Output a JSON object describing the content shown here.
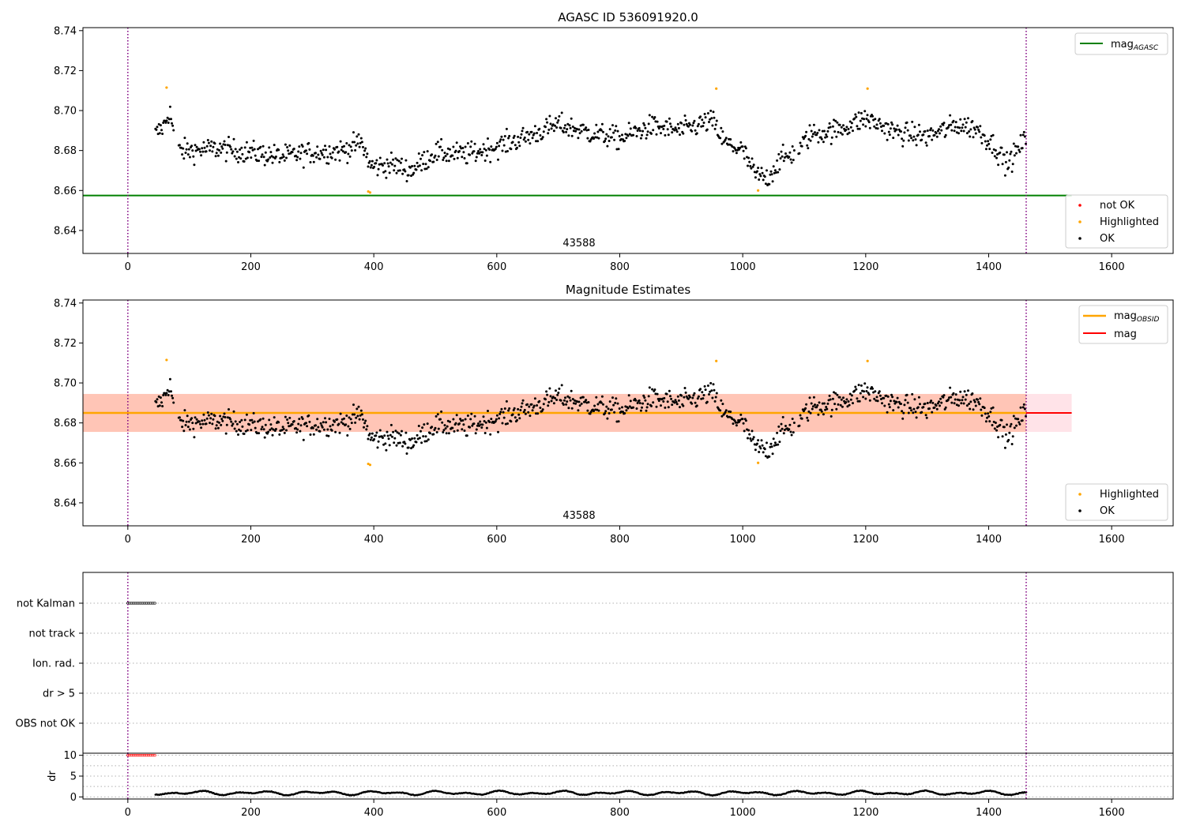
{
  "figure": {
    "colors": {
      "ok": "#000000",
      "not_ok": "#ff0000",
      "highlighted": "#ffa500",
      "mag_agasc": "#008000",
      "mag": "#ff0000",
      "mag_obsid": "#ffa500",
      "band_pink": "#ffc0cb",
      "band_orange": "#ffa07a",
      "epoch_line": "#800080",
      "grid": "#b0b0b0"
    }
  },
  "chart_data": [
    {
      "type": "scatter",
      "title": "AGASC ID 536091920.0",
      "xlabel": "",
      "ylabel": "",
      "xlim": [
        -73,
        1700
      ],
      "ylim": [
        8.6285,
        8.7415
      ],
      "xticks": [
        0,
        200,
        400,
        600,
        800,
        1000,
        1200,
        1400,
        1600
      ],
      "yticks": [
        8.64,
        8.66,
        8.68,
        8.7,
        8.72,
        8.74
      ],
      "grid": false,
      "vlines": [
        0,
        1461
      ],
      "annotation": {
        "text": "43588",
        "x": 730,
        "y": 8.633
      },
      "hlines": [
        {
          "name": "mag_AGASC",
          "y": 8.6575,
          "x_range": [
            -73,
            1535
          ]
        }
      ],
      "legends": [
        {
          "placement": "top-right",
          "entries": [
            {
              "label": "mag",
              "subscript": "AGASC",
              "style": "line",
              "color_key": "mag_agasc"
            }
          ]
        },
        {
          "placement": "lower-right",
          "entries": [
            {
              "label": "not OK",
              "style": "dot",
              "color_key": "not_ok"
            },
            {
              "label": "Highlighted",
              "style": "dot",
              "color_key": "highlighted"
            },
            {
              "label": "OK",
              "style": "dot",
              "color_key": "ok"
            }
          ]
        }
      ],
      "series": [
        {
          "name": "OK",
          "points": "mag_series"
        },
        {
          "name": "Highlighted",
          "x": [
            63,
            391,
            394,
            957,
            1025,
            1203
          ],
          "y": [
            8.7115,
            8.6595,
            8.659,
            8.711,
            8.66,
            8.711
          ]
        }
      ]
    },
    {
      "type": "scatter",
      "title": "Magnitude Estimates",
      "xlabel": "",
      "ylabel": "",
      "xlim": [
        -73,
        1700
      ],
      "ylim": [
        8.6285,
        8.7415
      ],
      "xticks": [
        0,
        200,
        400,
        600,
        800,
        1000,
        1200,
        1400,
        1600
      ],
      "yticks": [
        8.64,
        8.66,
        8.68,
        8.7,
        8.72,
        8.74
      ],
      "grid": false,
      "vlines": [
        0,
        1461
      ],
      "annotation": {
        "text": "43588",
        "x": 730,
        "y": 8.633
      },
      "bands": [
        {
          "name": "mag_band",
          "y": [
            8.6755,
            8.6945
          ],
          "x_range": [
            -73,
            1535
          ],
          "color_key": "band_pink"
        },
        {
          "name": "mag_OBSID_band",
          "y": [
            8.6755,
            8.6945
          ],
          "x_range": [
            -73,
            1461
          ],
          "color_key": "band_orange"
        }
      ],
      "hlines": [
        {
          "name": "mag",
          "y": 8.685,
          "x_range": [
            -73,
            1535
          ],
          "color_key": "mag"
        },
        {
          "name": "mag_OBSID",
          "y": 8.685,
          "x_range": [
            -73,
            1461
          ],
          "color_key": "mag_obsid"
        }
      ],
      "legends": [
        {
          "placement": "top-right",
          "entries": [
            {
              "label": "mag",
              "subscript": "OBSID",
              "style": "line",
              "color_key": "mag_obsid"
            },
            {
              "label": "mag",
              "subscript": "",
              "style": "line",
              "color_key": "mag"
            }
          ]
        },
        {
          "placement": "lower-right",
          "entries": [
            {
              "label": "Highlighted",
              "style": "dot",
              "color_key": "highlighted"
            },
            {
              "label": "OK",
              "style": "dot",
              "color_key": "ok"
            }
          ]
        }
      ],
      "series": [
        {
          "name": "OK",
          "points": "mag_series"
        },
        {
          "name": "Highlighted",
          "x": [
            63,
            391,
            394,
            957,
            1025,
            1203
          ],
          "y": [
            8.7115,
            8.6595,
            8.659,
            8.711,
            8.66,
            8.711
          ]
        }
      ]
    },
    {
      "type": "scatter",
      "title": "",
      "xlim": [
        -73,
        1700
      ],
      "categories": [
        "not Kalman",
        "not track",
        "Ion. rad.",
        "dr > 5",
        "OBS not OK"
      ],
      "grid": "horizontal dotted",
      "vlines": [
        0,
        1461
      ],
      "series": [
        {
          "name": "not Kalman",
          "x_range": [
            0,
            45
          ]
        }
      ]
    },
    {
      "type": "line",
      "title": "",
      "xlabel": "",
      "ylabel": "dr",
      "xlim": [
        -73,
        1700
      ],
      "ylim": [
        -0.5,
        10.5
      ],
      "xticks": [
        0,
        200,
        400,
        600,
        800,
        1000,
        1200,
        1400,
        1600
      ],
      "xtick_labels": [
        "0",
        "200",
        "400",
        "600",
        "800",
        "1000",
        "1200",
        "1400",
        "1600"
      ],
      "yticks": [
        0,
        5,
        10
      ],
      "ytick_labels": [
        "0",
        "5",
        "10"
      ],
      "grid": "horizontal dotted",
      "vlines": [
        0,
        1461
      ],
      "series": [
        {
          "name": "dr capped",
          "x_range": [
            0,
            45
          ],
          "y": 10,
          "color_key": "not_ok"
        },
        {
          "name": "dr",
          "x_range": [
            45,
            1461
          ],
          "y_typical": [
            0.3,
            1.6
          ],
          "color_key": "ok"
        }
      ]
    }
  ]
}
